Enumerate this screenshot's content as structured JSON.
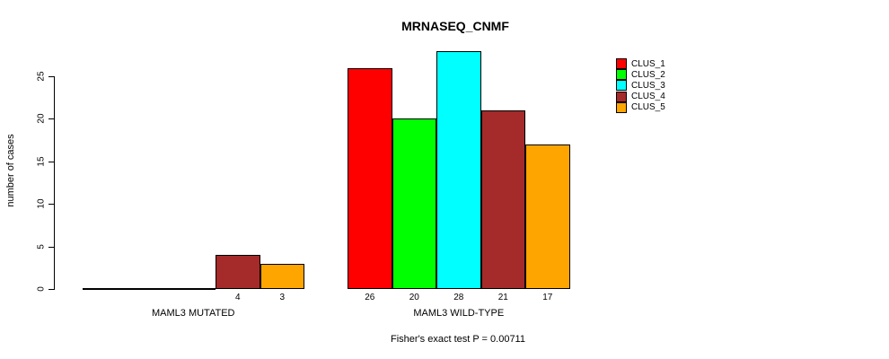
{
  "chart_data": {
    "type": "bar",
    "title": "MRNASEQ_CNMF",
    "ylabel": "number of cases",
    "xlabel": "",
    "categories": [
      "MAML3 MUTATED",
      "MAML3 WILD-TYPE"
    ],
    "series": [
      {
        "name": "CLUS_1",
        "color": "#FF0000",
        "values": [
          0,
          26
        ]
      },
      {
        "name": "CLUS_2",
        "color": "#00FF00",
        "values": [
          0,
          20
        ]
      },
      {
        "name": "CLUS_3",
        "color": "#00FFFF",
        "values": [
          0,
          28
        ]
      },
      {
        "name": "CLUS_4",
        "color": "#A52A2A",
        "values": [
          4,
          21
        ]
      },
      {
        "name": "CLUS_5",
        "color": "#FFA500",
        "values": [
          3,
          17
        ]
      }
    ],
    "yticks": [
      0,
      5,
      10,
      15,
      20,
      25
    ],
    "ylim": [
      0,
      28
    ],
    "bar_value_labels": [
      "4",
      "3",
      "26",
      "20",
      "28",
      "21",
      "17"
    ],
    "annotation": "Fisher's exact test P = 0.00711",
    "legend_position": "right",
    "grid": "off"
  }
}
